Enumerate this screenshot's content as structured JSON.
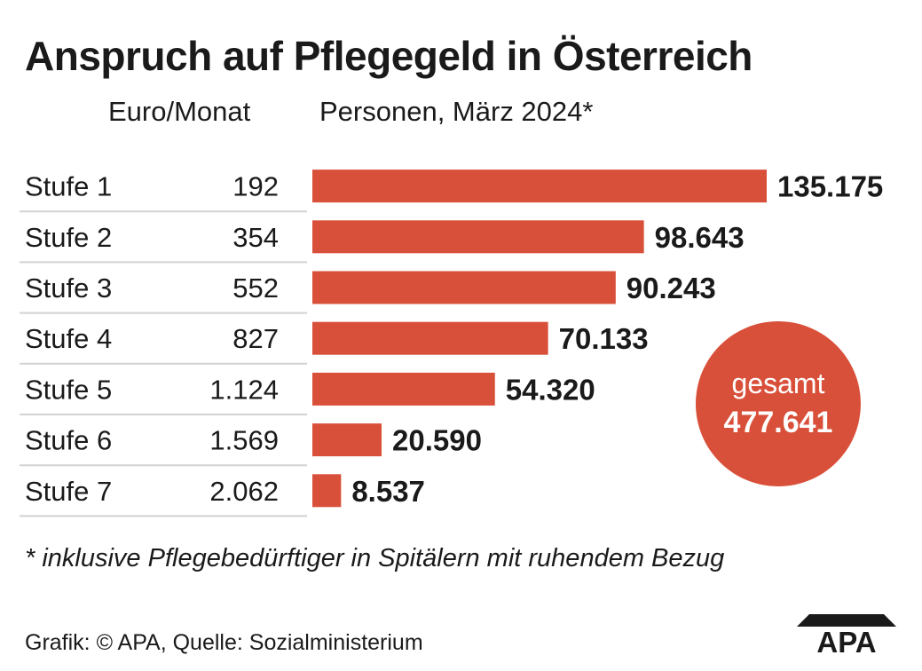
{
  "chart_data": {
    "type": "bar",
    "orientation": "horizontal",
    "title": "Anspruch auf Pflegegeld in Österreich",
    "column_headers": {
      "amount": "Euro/Monat",
      "persons": "Personen, März 2024*"
    },
    "categories": [
      "Stufe 1",
      "Stufe 2",
      "Stufe 3",
      "Stufe 4",
      "Stufe 5",
      "Stufe 6",
      "Stufe 7"
    ],
    "euro_per_month": [
      "192",
      "354",
      "552",
      "827",
      "1.124",
      "1.569",
      "2.062"
    ],
    "values": [
      135175,
      98643,
      90243,
      70133,
      54320,
      20590,
      8537
    ],
    "value_labels": [
      "135.175",
      "98.643",
      "90.243",
      "70.133",
      "54.320",
      "20.590",
      "8.537"
    ],
    "total": {
      "label": "gesamt",
      "value": "477.641"
    },
    "bar_color": "#d9503a",
    "xlim": [
      0,
      135175
    ],
    "grid": false,
    "legend": "none"
  },
  "footnote": "* inklusive Pflegebedürftiger in Spitälern mit ruhendem Bezug",
  "source": "Grafik: © APA, Quelle: Sozialministerium",
  "logo": {
    "text": "APA",
    "color": "#1a1a1a"
  }
}
